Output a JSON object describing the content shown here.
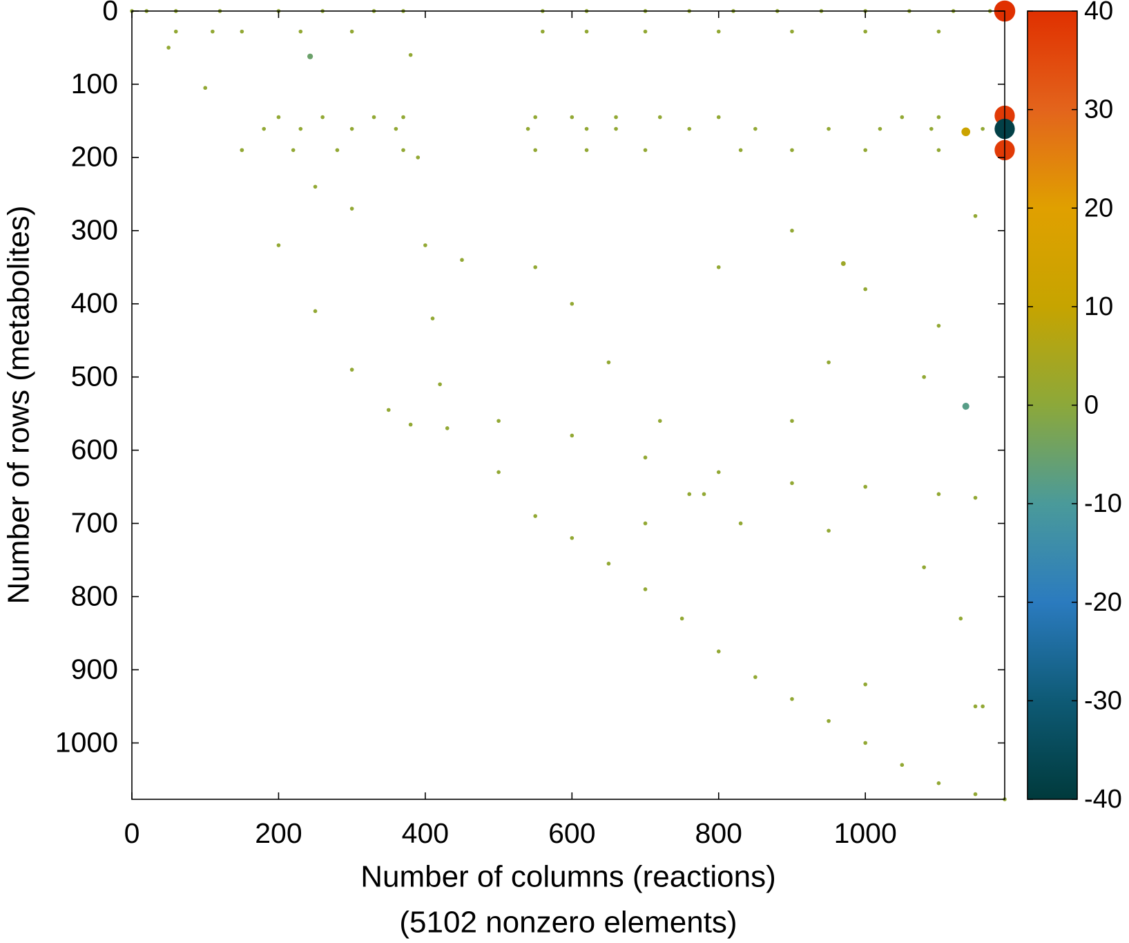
{
  "chart_data": {
    "type": "scatter",
    "x_label": "Number of columns (reactions)",
    "x_label_note": "(5102 nonzero elements)",
    "y_label": "Number of rows (metabolites)",
    "xlim": [
      0,
      1190
    ],
    "ylim": [
      0,
      1077
    ],
    "y_inverted": true,
    "xticks": [
      0,
      200,
      400,
      600,
      800,
      1000
    ],
    "yticks": [
      0,
      100,
      200,
      300,
      400,
      500,
      600,
      700,
      800,
      900,
      1000
    ],
    "clim": [
      -40,
      40
    ],
    "cticks": [
      -40,
      -30,
      -20,
      -10,
      0,
      10,
      20,
      30,
      40
    ],
    "colormap": [
      "#003a3c",
      "#0e5a75",
      "#2b7bbf",
      "#4a9a9a",
      "#8ca83a",
      "#c6a400",
      "#e0a000",
      "#e3641c",
      "#e03000"
    ],
    "x": [
      0,
      50,
      100,
      150,
      200,
      250,
      300,
      350,
      380,
      430,
      500,
      550,
      600,
      650,
      700,
      750,
      800,
      850,
      900,
      950,
      1000,
      1050,
      1100,
      1150,
      1190,
      20,
      60,
      120,
      200,
      260,
      330,
      370,
      560,
      620,
      700,
      760,
      820,
      880,
      940,
      1000,
      1060,
      1120,
      1170,
      60,
      110,
      150,
      230,
      300,
      560,
      620,
      700,
      800,
      900,
      1000,
      1100,
      200,
      260,
      330,
      370,
      550,
      600,
      660,
      720,
      800,
      1050,
      1100,
      1180,
      180,
      230,
      300,
      360,
      540,
      620,
      660,
      760,
      850,
      950,
      1020,
      1090,
      1160,
      150,
      220,
      280,
      370,
      550,
      620,
      700,
      830,
      900,
      1000,
      1100,
      380,
      390,
      400,
      410,
      420,
      600,
      700,
      800,
      900,
      1000,
      1100,
      1150,
      300,
      250,
      500,
      700,
      760,
      780,
      830,
      900,
      1000,
      1080,
      1130,
      1160,
      1080,
      950,
      650,
      600,
      550,
      800,
      450,
      1150,
      1000,
      1150,
      720,
      900,
      950,
      1100,
      1190,
      1190,
      1190,
      1190,
      1137,
      1137,
      970,
      243
    ],
    "y": [
      0,
      50,
      105,
      190,
      320,
      410,
      490,
      545,
      565,
      570,
      630,
      690,
      720,
      755,
      790,
      830,
      875,
      910,
      940,
      970,
      1000,
      1030,
      1055,
      1070,
      1077,
      0,
      0,
      0,
      0,
      0,
      0,
      0,
      0,
      0,
      0,
      0,
      0,
      0,
      0,
      0,
      0,
      0,
      0,
      28,
      28,
      28,
      28,
      28,
      28,
      28,
      28,
      28,
      28,
      28,
      28,
      145,
      145,
      145,
      145,
      145,
      145,
      145,
      145,
      145,
      145,
      145,
      145,
      161,
      161,
      161,
      161,
      161,
      161,
      161,
      161,
      161,
      161,
      161,
      161,
      161,
      190,
      190,
      190,
      190,
      190,
      190,
      190,
      190,
      190,
      190,
      190,
      60,
      200,
      320,
      420,
      510,
      580,
      610,
      630,
      645,
      650,
      660,
      665,
      270,
      240,
      560,
      700,
      660,
      660,
      700,
      300,
      380,
      760,
      830,
      950,
      500,
      480,
      480,
      400,
      350,
      350,
      340,
      280,
      920,
      950,
      560,
      560,
      710,
      430,
      0,
      143,
      161,
      190,
      165,
      540,
      345,
      62
    ],
    "values": [
      1,
      1,
      1,
      1,
      1,
      1,
      1,
      1,
      1,
      1,
      1,
      1,
      1,
      1,
      1,
      1,
      1,
      1,
      1,
      1,
      1,
      1,
      1,
      1,
      1,
      1,
      1,
      1,
      1,
      1,
      1,
      1,
      1,
      1,
      1,
      1,
      1,
      1,
      1,
      1,
      1,
      1,
      1,
      1,
      1,
      1,
      1,
      1,
      1,
      1,
      1,
      1,
      1,
      1,
      1,
      1,
      1,
      1,
      1,
      1,
      1,
      1,
      1,
      1,
      1,
      1,
      1,
      1,
      1,
      1,
      1,
      1,
      1,
      1,
      1,
      1,
      1,
      1,
      1,
      1,
      1,
      1,
      1,
      1,
      1,
      1,
      1,
      1,
      1,
      1,
      1,
      1,
      1,
      1,
      1,
      1,
      1,
      1,
      1,
      1,
      1,
      1,
      1,
      1,
      1,
      1,
      1,
      1,
      1,
      1,
      1,
      1,
      1,
      1,
      1,
      1,
      1,
      1,
      1,
      1,
      1,
      1,
      1,
      1,
      1,
      1,
      1,
      1,
      1,
      40,
      38,
      -38,
      38,
      12,
      -8,
      3,
      -5
    ]
  }
}
